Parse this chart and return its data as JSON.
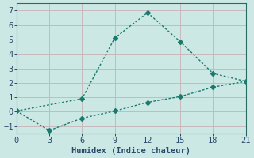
{
  "line1_x": [
    0,
    6,
    9,
    12,
    15,
    18,
    21
  ],
  "line1_y": [
    0.05,
    0.9,
    5.1,
    6.85,
    4.85,
    2.65,
    2.1
  ],
  "line2_x": [
    0,
    3,
    6,
    9,
    12,
    15,
    18,
    21
  ],
  "line2_y": [
    0.05,
    -1.3,
    -0.45,
    0.05,
    0.65,
    1.05,
    1.7,
    2.1
  ],
  "line_color": "#1a7a6e",
  "bg_color": "#cce8e5",
  "grid_color_h": "#c8b8bc",
  "grid_color_v": "#c8b8bc",
  "xlabel": "Humidex (Indice chaleur)",
  "xlim": [
    0,
    21
  ],
  "ylim": [
    -1.5,
    7.5
  ],
  "xticks": [
    0,
    3,
    6,
    9,
    12,
    15,
    18,
    21
  ],
  "yticks": [
    -1,
    0,
    1,
    2,
    3,
    4,
    5,
    6,
    7
  ],
  "axis_fontsize": 7.5,
  "tick_fontsize": 7.5,
  "marker": "D",
  "markersize": 3,
  "linewidth": 1.0
}
